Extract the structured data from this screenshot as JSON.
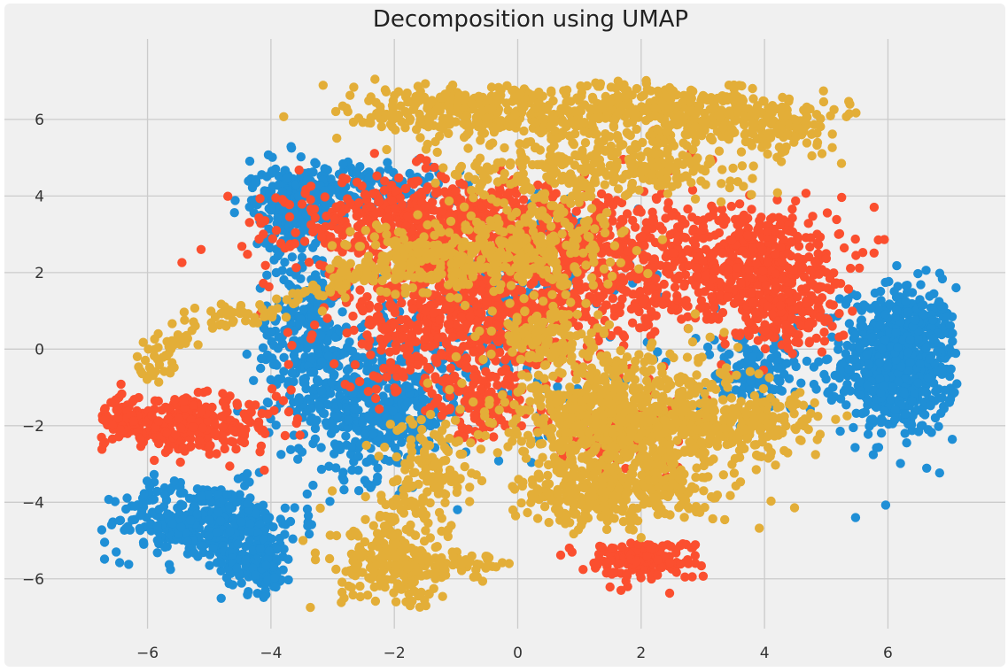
{
  "chart_data": {
    "type": "scatter",
    "title": "Decomposition using UMAP",
    "xlabel": "",
    "ylabel": "",
    "xlim": [
      -7.3,
      7.3
    ],
    "ylim": [
      -7.3,
      7.5
    ],
    "xticks": [
      -6,
      -4,
      -2,
      0,
      2,
      4,
      6
    ],
    "yticks": [
      -6,
      -4,
      -2,
      0,
      2,
      4,
      6
    ],
    "xtick_labels": [
      "−6",
      "−4",
      "−2",
      "0",
      "2",
      "4",
      "6"
    ],
    "ytick_labels": [
      "−6",
      "−4",
      "−2",
      "0",
      "2",
      "4",
      "6"
    ],
    "grid": true,
    "legend": false,
    "colors": {
      "series_1": "#1f8fd6",
      "series_2": "#fb4f2f",
      "series_3": "#e3ae38",
      "background": "#f0f0f0",
      "grid": "#cbcbcb"
    },
    "series": [
      {
        "color": "#1f8fd6",
        "clusters": [
          {
            "cx": 6.2,
            "cy": -0.3,
            "sx": 0.55,
            "sy": 1.15,
            "n": 700
          },
          {
            "cx": -5.1,
            "cy": -4.5,
            "sx": 0.9,
            "sy": 0.6,
            "n": 380
          },
          {
            "cx": -4.2,
            "cy": -5.6,
            "sx": 0.35,
            "sy": 0.45,
            "n": 120
          },
          {
            "cx": -2.3,
            "cy": -1.5,
            "sx": 0.75,
            "sy": 1.1,
            "n": 450
          },
          {
            "cx": -3.7,
            "cy": 3.7,
            "sx": 0.35,
            "sy": 0.65,
            "n": 180
          },
          {
            "cx": -2.8,
            "cy": 4.2,
            "sx": 0.9,
            "sy": 0.45,
            "n": 200
          },
          {
            "cx": -3.4,
            "cy": 0.3,
            "sx": 0.5,
            "sy": 1.3,
            "n": 260
          },
          {
            "cx": 3.9,
            "cy": -0.6,
            "sx": 0.55,
            "sy": 0.65,
            "n": 160
          },
          {
            "cx": -0.4,
            "cy": 0.8,
            "sx": 1.4,
            "sy": 1.8,
            "n": 220
          }
        ]
      },
      {
        "color": "#fb4f2f",
        "clusters": [
          {
            "cx": -5.3,
            "cy": -2.0,
            "sx": 0.85,
            "sy": 0.4,
            "n": 300
          },
          {
            "cx": -6.5,
            "cy": -1.8,
            "sx": 0.22,
            "sy": 0.35,
            "n": 60
          },
          {
            "cx": -1.3,
            "cy": 3.2,
            "sx": 1.35,
            "sy": 0.75,
            "n": 700
          },
          {
            "cx": -0.9,
            "cy": 0.7,
            "sx": 1.25,
            "sy": 1.05,
            "n": 600
          },
          {
            "cx": 1.5,
            "cy": 2.2,
            "sx": 1.15,
            "sy": 1.25,
            "n": 500
          },
          {
            "cx": 3.8,
            "cy": 2.3,
            "sx": 0.85,
            "sy": 0.9,
            "n": 450
          },
          {
            "cx": 4.3,
            "cy": 1.0,
            "sx": 0.5,
            "sy": 0.6,
            "n": 150
          },
          {
            "cx": 2.0,
            "cy": -5.5,
            "sx": 0.55,
            "sy": 0.3,
            "n": 170
          },
          {
            "cx": 1.6,
            "cy": -2.2,
            "sx": 0.8,
            "sy": 0.6,
            "n": 120
          },
          {
            "cx": -0.6,
            "cy": -1.5,
            "sx": 0.5,
            "sy": 0.5,
            "n": 110
          }
        ]
      },
      {
        "color": "#e3ae38",
        "clusters": [
          {
            "cx": -0.5,
            "cy": 6.2,
            "sx": 1.3,
            "sy": 0.45,
            "n": 350
          },
          {
            "cx": 2.4,
            "cy": 6.2,
            "sx": 1.1,
            "sy": 0.45,
            "n": 350
          },
          {
            "cx": 4.2,
            "cy": 5.8,
            "sx": 0.55,
            "sy": 0.4,
            "n": 120
          },
          {
            "cx": 1.4,
            "cy": 4.8,
            "sx": 1.4,
            "sy": 0.5,
            "n": 300
          },
          {
            "cx": 1.9,
            "cy": -1.9,
            "sx": 1.25,
            "sy": 1.05,
            "n": 900
          },
          {
            "cx": 1.4,
            "cy": -3.8,
            "sx": 0.9,
            "sy": 0.45,
            "n": 300
          },
          {
            "cx": 3.9,
            "cy": -2.0,
            "sx": 0.55,
            "sy": 0.4,
            "n": 120
          },
          {
            "cx": -2.0,
            "cy": -5.6,
            "sx": 0.55,
            "sy": 0.7,
            "n": 220
          },
          {
            "cx": -1.0,
            "cy": -5.7,
            "sx": 0.5,
            "sy": 0.18,
            "n": 60
          },
          {
            "cx": -1.5,
            "cy": -3.2,
            "sx": 0.45,
            "sy": 1.0,
            "n": 140
          },
          {
            "cx": -1.1,
            "cy": 2.4,
            "sx": 1.0,
            "sy": 0.55,
            "n": 260
          },
          {
            "cx": 0.4,
            "cy": 2.7,
            "sx": 0.8,
            "sy": 0.9,
            "n": 220
          },
          {
            "cx": 0.5,
            "cy": 0.3,
            "sx": 0.5,
            "sy": 0.5,
            "n": 120
          }
        ],
        "arcs": [
          {
            "points": [
              [
                -6.0,
                -0.9
              ],
              [
                -5.7,
                0.1
              ],
              [
                -5.0,
                0.8
              ],
              [
                -4.2,
                0.9
              ],
              [
                -3.3,
                1.5
              ],
              [
                -2.5,
                2.0
              ],
              [
                -1.8,
                2.3
              ]
            ],
            "n": 160,
            "spread": 0.18
          }
        ]
      }
    ]
  }
}
